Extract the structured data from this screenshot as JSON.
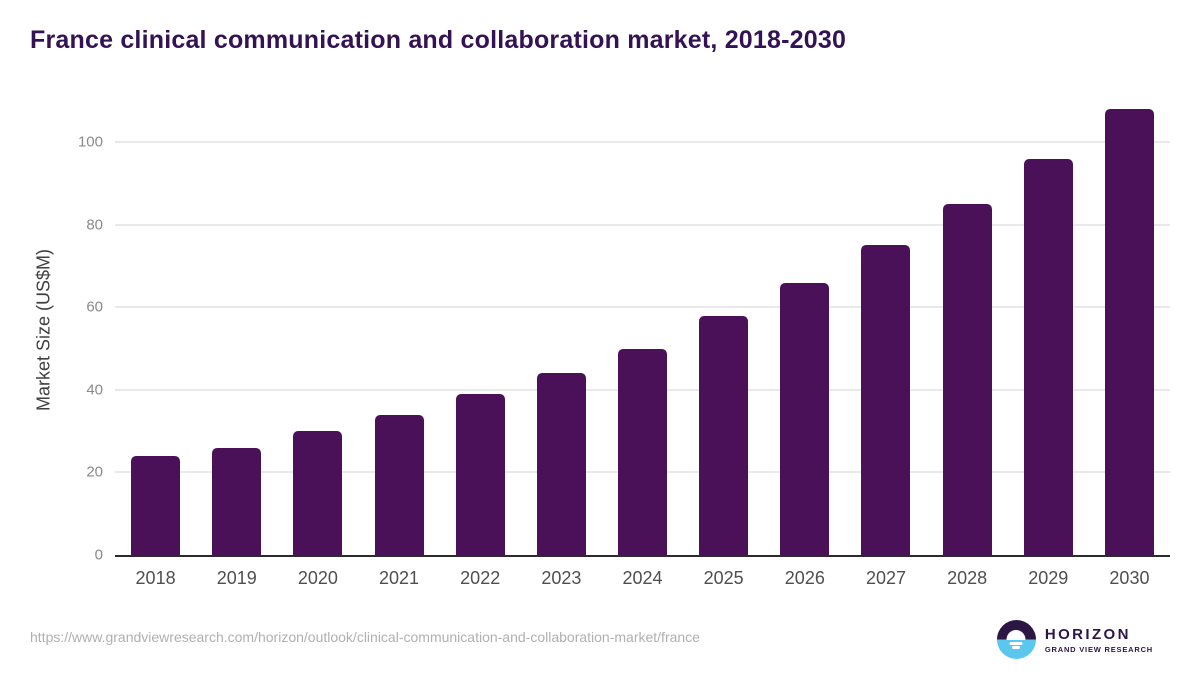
{
  "chart": {
    "title": "France clinical communication and collaboration market, 2018-2030",
    "y_axis_title": "Market Size (US$M)"
  },
  "chart_data": {
    "type": "bar",
    "title": "France clinical communication and collaboration market, 2018-2030",
    "xlabel": "",
    "ylabel": "Market Size (US$M)",
    "categories": [
      "2018",
      "2019",
      "2020",
      "2021",
      "2022",
      "2023",
      "2024",
      "2025",
      "2026",
      "2027",
      "2028",
      "2029",
      "2030"
    ],
    "values": [
      24,
      26,
      30,
      34,
      39,
      44,
      50,
      58,
      66,
      75,
      85,
      96,
      108
    ],
    "ylim": [
      0,
      110
    ],
    "yticks": [
      0,
      20,
      40,
      60,
      80,
      100
    ],
    "grid": true,
    "legend": false,
    "bar_color": "#4a1158"
  },
  "footer": {
    "source_url": "https://www.grandviewresearch.com/horizon/outlook/clinical-communication-and-collaboration-market/france",
    "logo": {
      "brand": "HORIZON",
      "tagline": "GRAND VIEW RESEARCH"
    }
  },
  "colors": {
    "title_text": "#331353",
    "bar": "#4a1158",
    "gridline": "#e9e9e9",
    "axis_line": "#2b2b2b",
    "ytick_text": "#8a8a8a",
    "xtick_text": "#4f4f4f",
    "url_text": "#b0b0b0",
    "logo_purple": "#2c1744",
    "logo_blue": "#5bc6ee"
  }
}
